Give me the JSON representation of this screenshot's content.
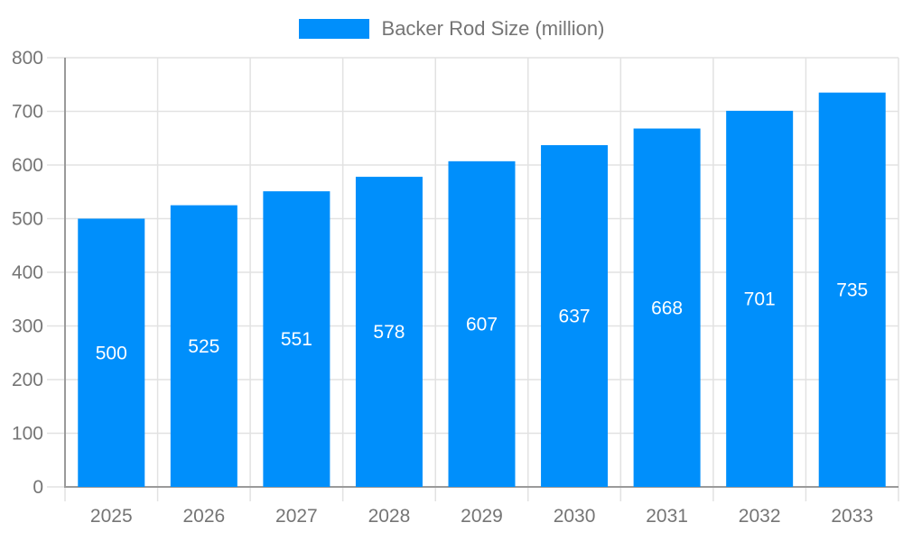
{
  "legend": {
    "label": "Backer Rod Size (million)"
  },
  "chart_data": {
    "type": "bar",
    "title": "Backer Rod Size (million)",
    "categories": [
      "2025",
      "2026",
      "2027",
      "2028",
      "2029",
      "2030",
      "2031",
      "2032",
      "2033"
    ],
    "series": [
      {
        "name": "Backer Rod Size (million)",
        "values": [
          500,
          525,
          551,
          578,
          607,
          637,
          668,
          701,
          735
        ]
      }
    ],
    "data_labels": [
      "500",
      "525",
      "551",
      "578",
      "607",
      "637",
      "668",
      "701",
      "735"
    ],
    "xlabel": "",
    "ylabel": "",
    "ylim": [
      0,
      800
    ],
    "ytick_step": 100,
    "ytick_labels": [
      "0",
      "100",
      "200",
      "300",
      "400",
      "500",
      "600",
      "700",
      "800"
    ],
    "grid": true,
    "legend_position": "top",
    "colors": {
      "bar": "#008FFB",
      "axis_line": "#9a9a9a",
      "grid_line": "#e2e2e2",
      "tick_label": "#757575",
      "legend_text": "#757575",
      "data_label": "#ffffff",
      "background": "#ffffff"
    }
  }
}
